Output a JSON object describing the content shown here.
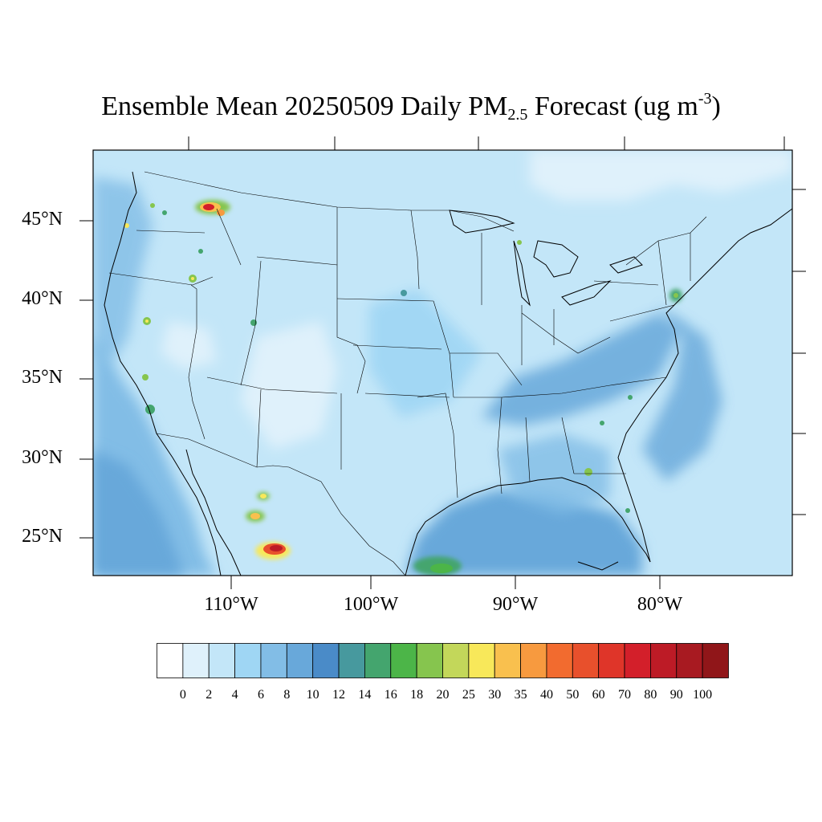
{
  "title": {
    "prefix": "Ensemble Mean 20250509 Daily PM",
    "sub": "2.5",
    "middle": " Forecast (ug m",
    "sup": "-3",
    "suffix": ")"
  },
  "lat_labels": [
    "45°N",
    "40°N",
    "35°N",
    "30°N",
    "25°N"
  ],
  "lon_labels": [
    "110°W",
    "100°W",
    "90°W",
    "80°W"
  ],
  "colorbar": {
    "labels": [
      "0",
      "2",
      "4",
      "6",
      "8",
      "10",
      "12",
      "14",
      "16",
      "18",
      "20",
      "25",
      "30",
      "35",
      "40",
      "50",
      "60",
      "70",
      "80",
      "90",
      "100"
    ],
    "colors": [
      "#ffffff",
      "#dff1fb",
      "#c3e6f8",
      "#9fd6f4",
      "#82bde6",
      "#68a8da",
      "#4a8bc8",
      "#47999e",
      "#44a56e",
      "#4cb548",
      "#86c54e",
      "#c3d75a",
      "#f8e85a",
      "#f9c04e",
      "#f79a3f",
      "#f26b2f",
      "#e8502c",
      "#df3529",
      "#d31f2a",
      "#bd1b26",
      "#a81a21",
      "#901619"
    ]
  },
  "colors": {
    "base_land": "#c3e6f8",
    "ocean_pacific": "#82bde6",
    "ocean_gulf": "#68a8da",
    "border": "#000000"
  }
}
